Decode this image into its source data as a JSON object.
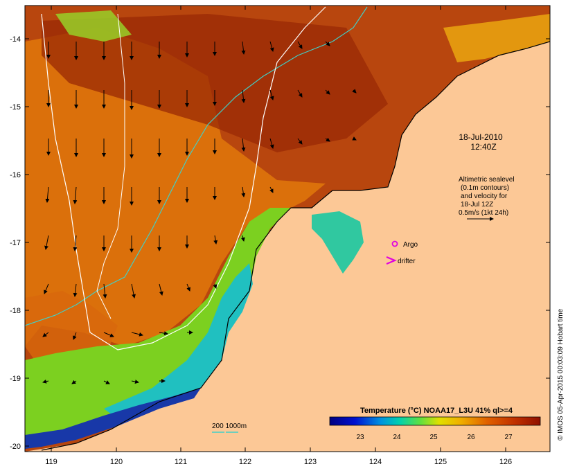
{
  "map": {
    "date_line": "18-Jul-2010",
    "time_line": "12:40Z",
    "info_lines": [
      "Altimetric sealevel",
      "(0.1m contours)",
      "and velocity for",
      "18-Jul 12Z",
      "0.5m/s (1kt 24h)"
    ],
    "legend_argo": "Argo",
    "legend_drifter": "drifter",
    "depth_label": "200  1000m",
    "colorbar_title": "Temperature (°C) NOAA17_L3U 41% ql>=4",
    "colorbar_ticks": [
      "23",
      "24",
      "25",
      "26",
      "27"
    ],
    "lat_ticks": [
      "-14",
      "-15",
      "-16",
      "-17",
      "-18",
      "-19",
      "-20"
    ],
    "lon_ticks": [
      "119",
      "120",
      "121",
      "122",
      "123",
      "124",
      "125",
      "126"
    ],
    "credit": "© IMOS 05-Apr-2015 00:03:09 Hobart time"
  },
  "colors": {
    "land": "#fcc896",
    "sst_warm": "#b03c0a",
    "sst_cool": "#1a2b9e",
    "bathymetry_200m": "#40d0c8",
    "bathymetry_1000m": "#ffffff",
    "argo_marker": "#e000e0"
  }
}
